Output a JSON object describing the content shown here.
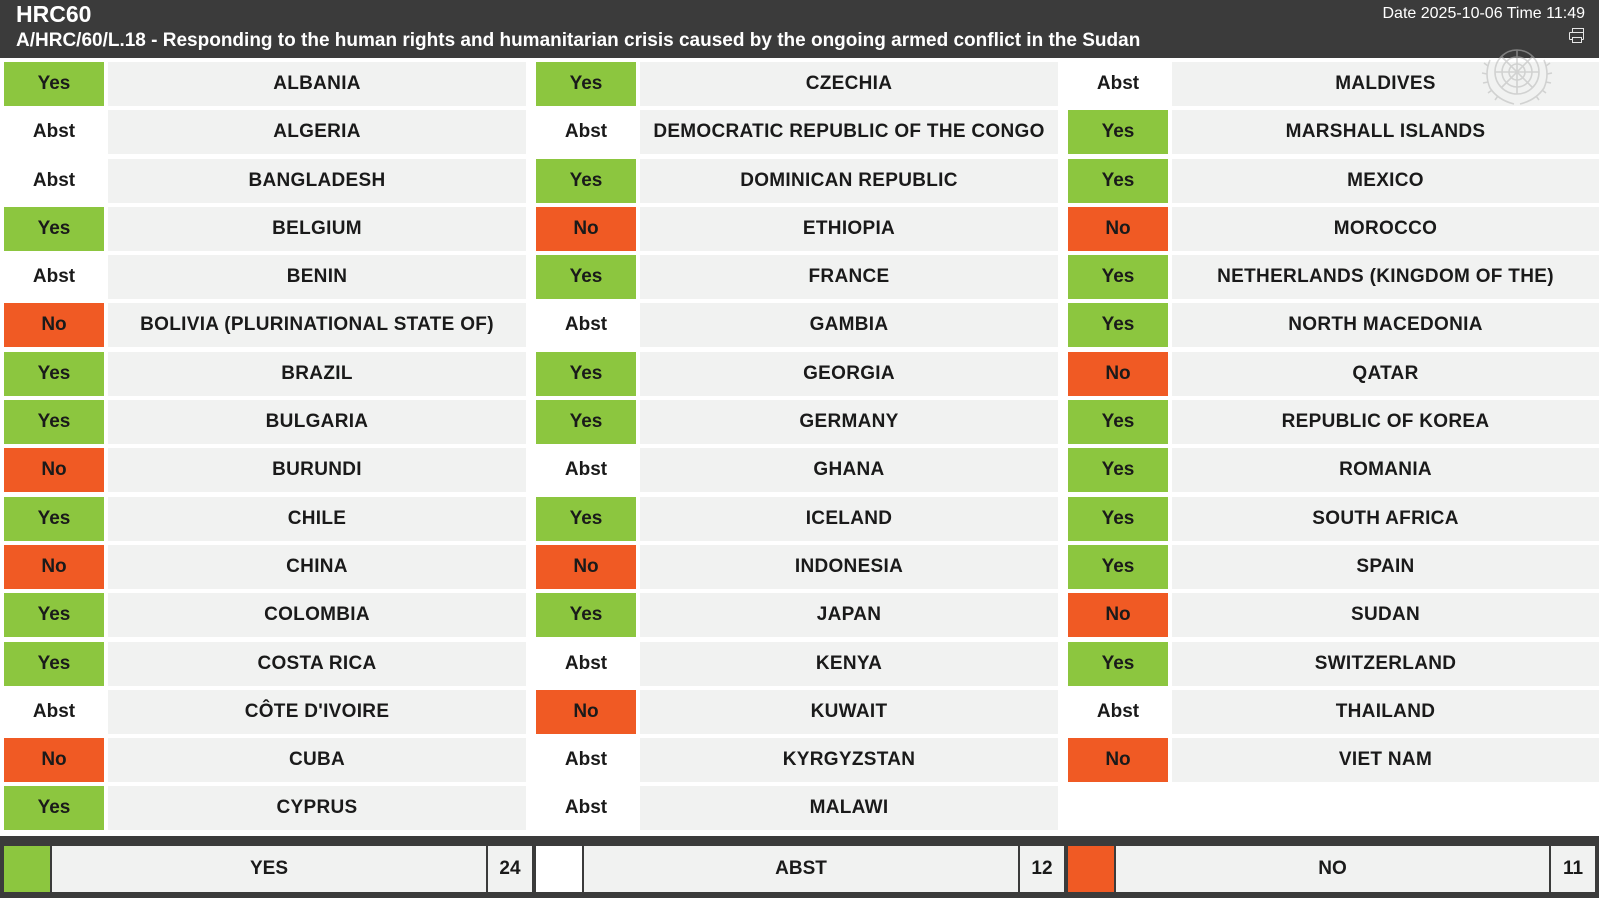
{
  "header": {
    "title": "HRC60",
    "subtitle": "A/HRC/60/L.18 - Responding to the human rights and humanitarian crisis caused by the ongoing armed conflict in the Sudan",
    "datetime": "Date 2025-10-06 Time 11:49"
  },
  "colors": {
    "yes": "#8cc63f",
    "no": "#f05a24",
    "abst": "#ffffff",
    "header_bg": "#3b3b3b"
  },
  "columns": [
    [
      {
        "vote": "Yes",
        "country": "ALBANIA"
      },
      {
        "vote": "Abst",
        "country": "ALGERIA"
      },
      {
        "vote": "Abst",
        "country": "BANGLADESH"
      },
      {
        "vote": "Yes",
        "country": "BELGIUM"
      },
      {
        "vote": "Abst",
        "country": "BENIN"
      },
      {
        "vote": "No",
        "country": "BOLIVIA (PLURINATIONAL STATE OF)"
      },
      {
        "vote": "Yes",
        "country": "BRAZIL"
      },
      {
        "vote": "Yes",
        "country": "BULGARIA"
      },
      {
        "vote": "No",
        "country": "BURUNDI"
      },
      {
        "vote": "Yes",
        "country": "CHILE"
      },
      {
        "vote": "No",
        "country": "CHINA"
      },
      {
        "vote": "Yes",
        "country": "COLOMBIA"
      },
      {
        "vote": "Yes",
        "country": "COSTA RICA"
      },
      {
        "vote": "Abst",
        "country": "CÔTE D'IVOIRE"
      },
      {
        "vote": "No",
        "country": "CUBA"
      },
      {
        "vote": "Yes",
        "country": "CYPRUS"
      }
    ],
    [
      {
        "vote": "Yes",
        "country": "CZECHIA"
      },
      {
        "vote": "Abst",
        "country": "DEMOCRATIC REPUBLIC OF THE CONGO"
      },
      {
        "vote": "Yes",
        "country": "DOMINICAN REPUBLIC"
      },
      {
        "vote": "No",
        "country": "ETHIOPIA"
      },
      {
        "vote": "Yes",
        "country": "FRANCE"
      },
      {
        "vote": "Abst",
        "country": "GAMBIA"
      },
      {
        "vote": "Yes",
        "country": "GEORGIA"
      },
      {
        "vote": "Yes",
        "country": "GERMANY"
      },
      {
        "vote": "Abst",
        "country": "GHANA"
      },
      {
        "vote": "Yes",
        "country": "ICELAND"
      },
      {
        "vote": "No",
        "country": "INDONESIA"
      },
      {
        "vote": "Yes",
        "country": "JAPAN"
      },
      {
        "vote": "Abst",
        "country": "KENYA"
      },
      {
        "vote": "No",
        "country": "KUWAIT"
      },
      {
        "vote": "Abst",
        "country": "KYRGYZSTAN"
      },
      {
        "vote": "Abst",
        "country": "MALAWI"
      }
    ],
    [
      {
        "vote": "Abst",
        "country": "MALDIVES"
      },
      {
        "vote": "Yes",
        "country": "MARSHALL ISLANDS"
      },
      {
        "vote": "Yes",
        "country": "MEXICO"
      },
      {
        "vote": "No",
        "country": "MOROCCO"
      },
      {
        "vote": "Yes",
        "country": "NETHERLANDS (KINGDOM OF THE)"
      },
      {
        "vote": "Yes",
        "country": "NORTH MACEDONIA"
      },
      {
        "vote": "No",
        "country": "QATAR"
      },
      {
        "vote": "Yes",
        "country": "REPUBLIC OF KOREA"
      },
      {
        "vote": "Yes",
        "country": "ROMANIA"
      },
      {
        "vote": "Yes",
        "country": "SOUTH AFRICA"
      },
      {
        "vote": "Yes",
        "country": "SPAIN"
      },
      {
        "vote": "No",
        "country": "SUDAN"
      },
      {
        "vote": "Yes",
        "country": "SWITZERLAND"
      },
      {
        "vote": "Abst",
        "country": "THAILAND"
      },
      {
        "vote": "No",
        "country": "VIET NAM"
      }
    ]
  ],
  "totals": {
    "yes": {
      "label": "YES",
      "count": "24"
    },
    "abst": {
      "label": "ABST",
      "count": "12"
    },
    "no": {
      "label": "NO",
      "count": "11"
    }
  }
}
